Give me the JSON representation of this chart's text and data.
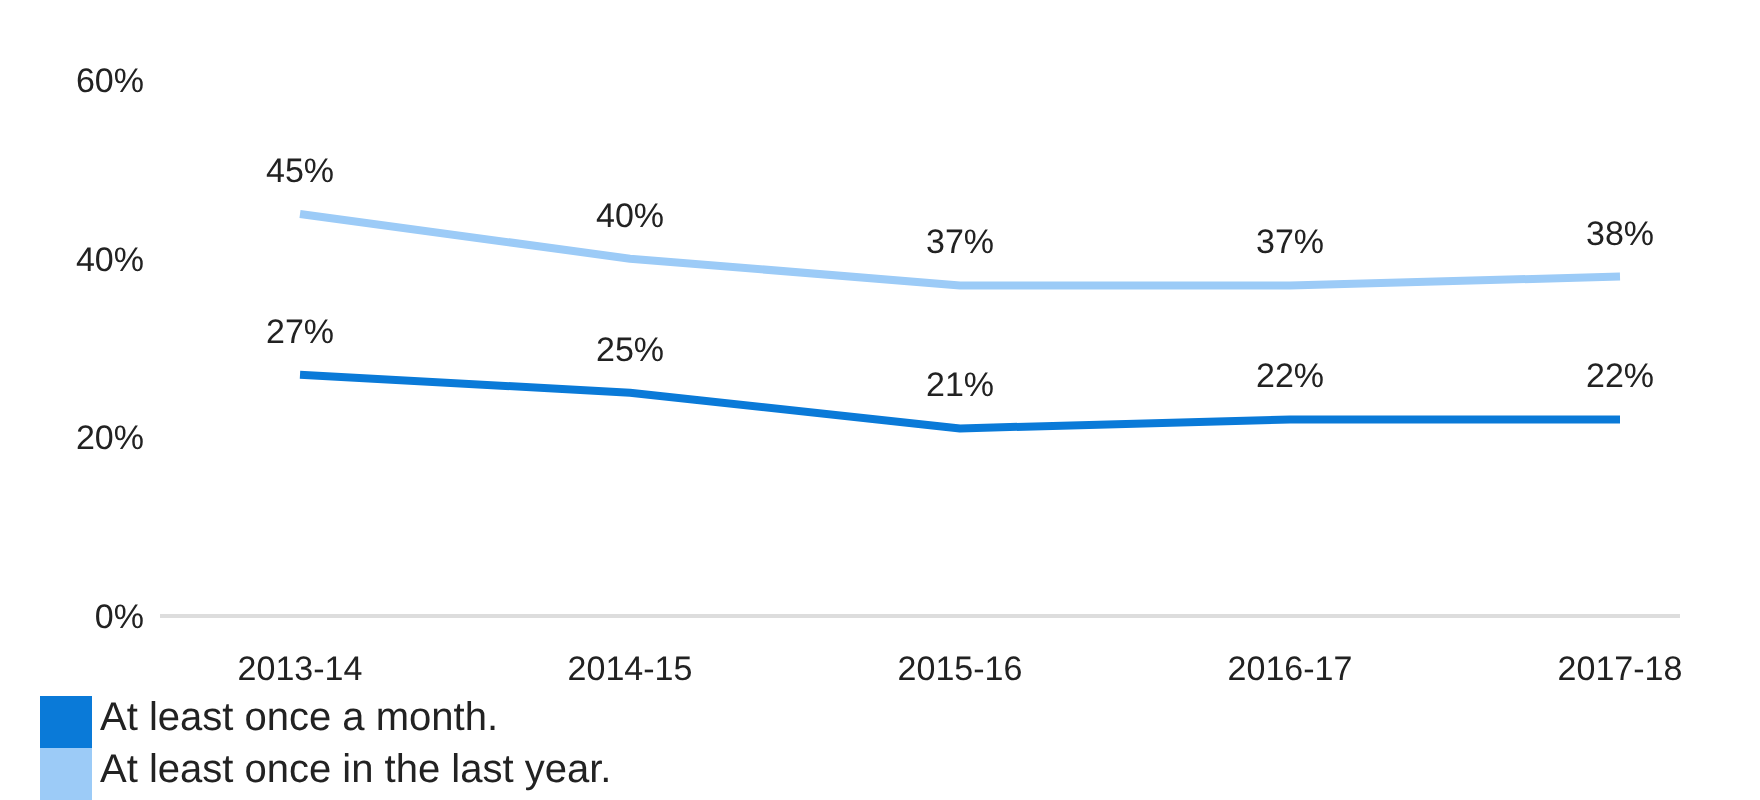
{
  "chart_data": {
    "type": "line",
    "categories": [
      "2013-14",
      "2014-15",
      "2015-16",
      "2016-17",
      "2017-18"
    ],
    "series": [
      {
        "name": "At least once a month.",
        "color": "#0a7ad8",
        "values": [
          27,
          25,
          21,
          22,
          22
        ],
        "value_labels": [
          "27%",
          "25%",
          "21%",
          "22%",
          "22%"
        ]
      },
      {
        "name": "At least once in the last year.",
        "color": "#9ccbf7",
        "values": [
          45,
          40,
          37,
          37,
          38
        ],
        "value_labels": [
          "45%",
          "40%",
          "37%",
          "37%",
          "38%"
        ]
      }
    ],
    "ylim": [
      0,
      60
    ],
    "yticks": [
      {
        "value": 0,
        "label": "0%"
      },
      {
        "value": 20,
        "label": "20%"
      },
      {
        "value": 40,
        "label": "40%"
      },
      {
        "value": 60,
        "label": "60%"
      }
    ],
    "grid": false,
    "legend": "bottom left",
    "marker": "none",
    "line_style": "solid"
  }
}
